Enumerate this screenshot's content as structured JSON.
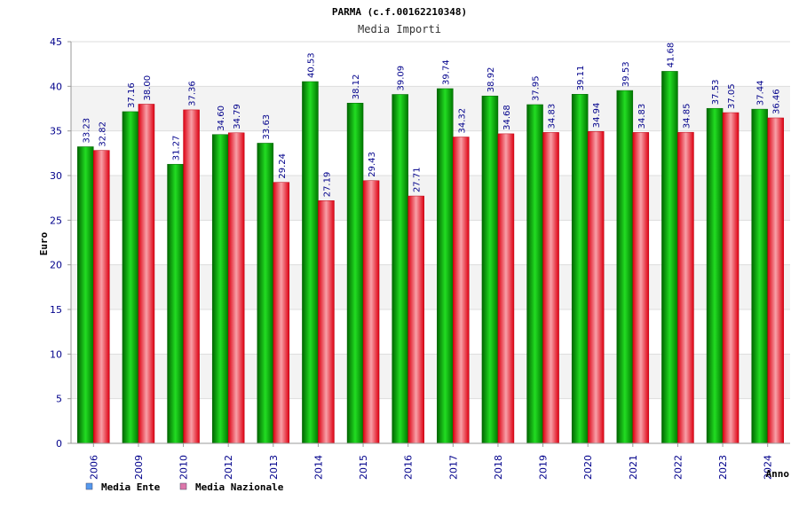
{
  "chart_data": {
    "type": "bar",
    "title": "PARMA (c.f.00162210348)",
    "subtitle": "Media Importi",
    "ylabel": "Euro",
    "xlabel": "Anno",
    "ylim": [
      0,
      45
    ],
    "yticks": [
      0,
      5,
      10,
      15,
      20,
      25,
      30,
      35,
      40,
      45
    ],
    "categories": [
      "2006",
      "2009",
      "2010",
      "2012",
      "2013",
      "2014",
      "2015",
      "2016",
      "2017",
      "2018",
      "2019",
      "2020",
      "2021",
      "2022",
      "2023",
      "2024"
    ],
    "series": [
      {
        "name": "Media Ente",
        "color": "#00c000",
        "legend_color": "#5599ee",
        "values": [
          33.23,
          37.16,
          31.27,
          34.6,
          33.63,
          40.53,
          38.12,
          39.09,
          39.74,
          38.92,
          37.95,
          39.11,
          39.53,
          41.68,
          37.53,
          37.44
        ],
        "labels": [
          "33.23",
          "37.16",
          "31.27",
          "34.60",
          "33.63",
          "40.53",
          "38.12",
          "39.09",
          "39.74",
          "38.92",
          "37.95",
          "39.11",
          "39.53",
          "41.68",
          "37.53",
          "37.44"
        ]
      },
      {
        "name": "Media Nazionale",
        "color": "#e8303a",
        "legend_color": "#dd77aa",
        "values": [
          32.82,
          38.0,
          37.36,
          34.79,
          29.24,
          27.19,
          29.43,
          27.71,
          34.32,
          34.68,
          34.83,
          34.94,
          34.83,
          34.85,
          37.05,
          36.46
        ],
        "labels": [
          "32.82",
          "38.00",
          "37.36",
          "34.79",
          "29.24",
          "27.19",
          "29.43",
          "27.71",
          "34.32",
          "34.68",
          "34.83",
          "34.94",
          "34.83",
          "34.85",
          "37.05",
          "36.46"
        ]
      }
    ]
  }
}
